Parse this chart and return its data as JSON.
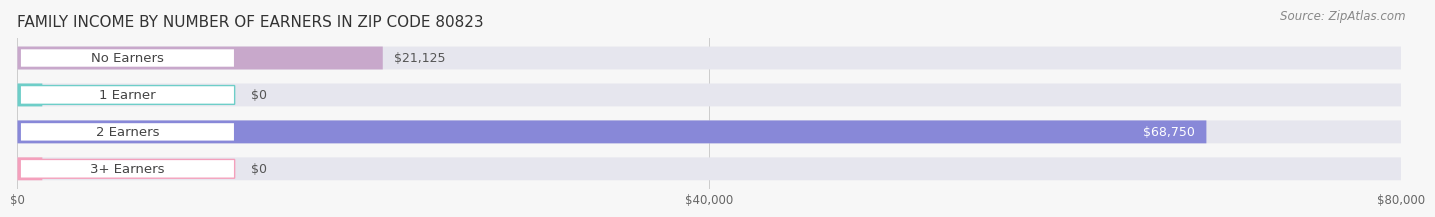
{
  "title": "FAMILY INCOME BY NUMBER OF EARNERS IN ZIP CODE 80823",
  "source": "Source: ZipAtlas.com",
  "categories": [
    "No Earners",
    "1 Earner",
    "2 Earners",
    "3+ Earners"
  ],
  "values": [
    21125,
    0,
    68750,
    0
  ],
  "bar_colors": [
    "#c8a8cb",
    "#6ecec8",
    "#8888d8",
    "#f4a0bc"
  ],
  "value_labels": [
    "$21,125",
    "$0",
    "$68,750",
    "$0"
  ],
  "value_label_inside": [
    false,
    false,
    true,
    false
  ],
  "xlim": [
    0,
    80000
  ],
  "xtick_values": [
    0,
    40000,
    80000
  ],
  "xtick_labels": [
    "$0",
    "$40,000",
    "$80,000"
  ],
  "bar_height": 0.62,
  "background_color": "#f7f7f7",
  "bar_bg_color": "#e6e6ee",
  "pill_bg_color": "#ffffff",
  "title_fontsize": 11,
  "source_fontsize": 8.5,
  "label_fontsize": 9.5,
  "value_fontsize": 9
}
